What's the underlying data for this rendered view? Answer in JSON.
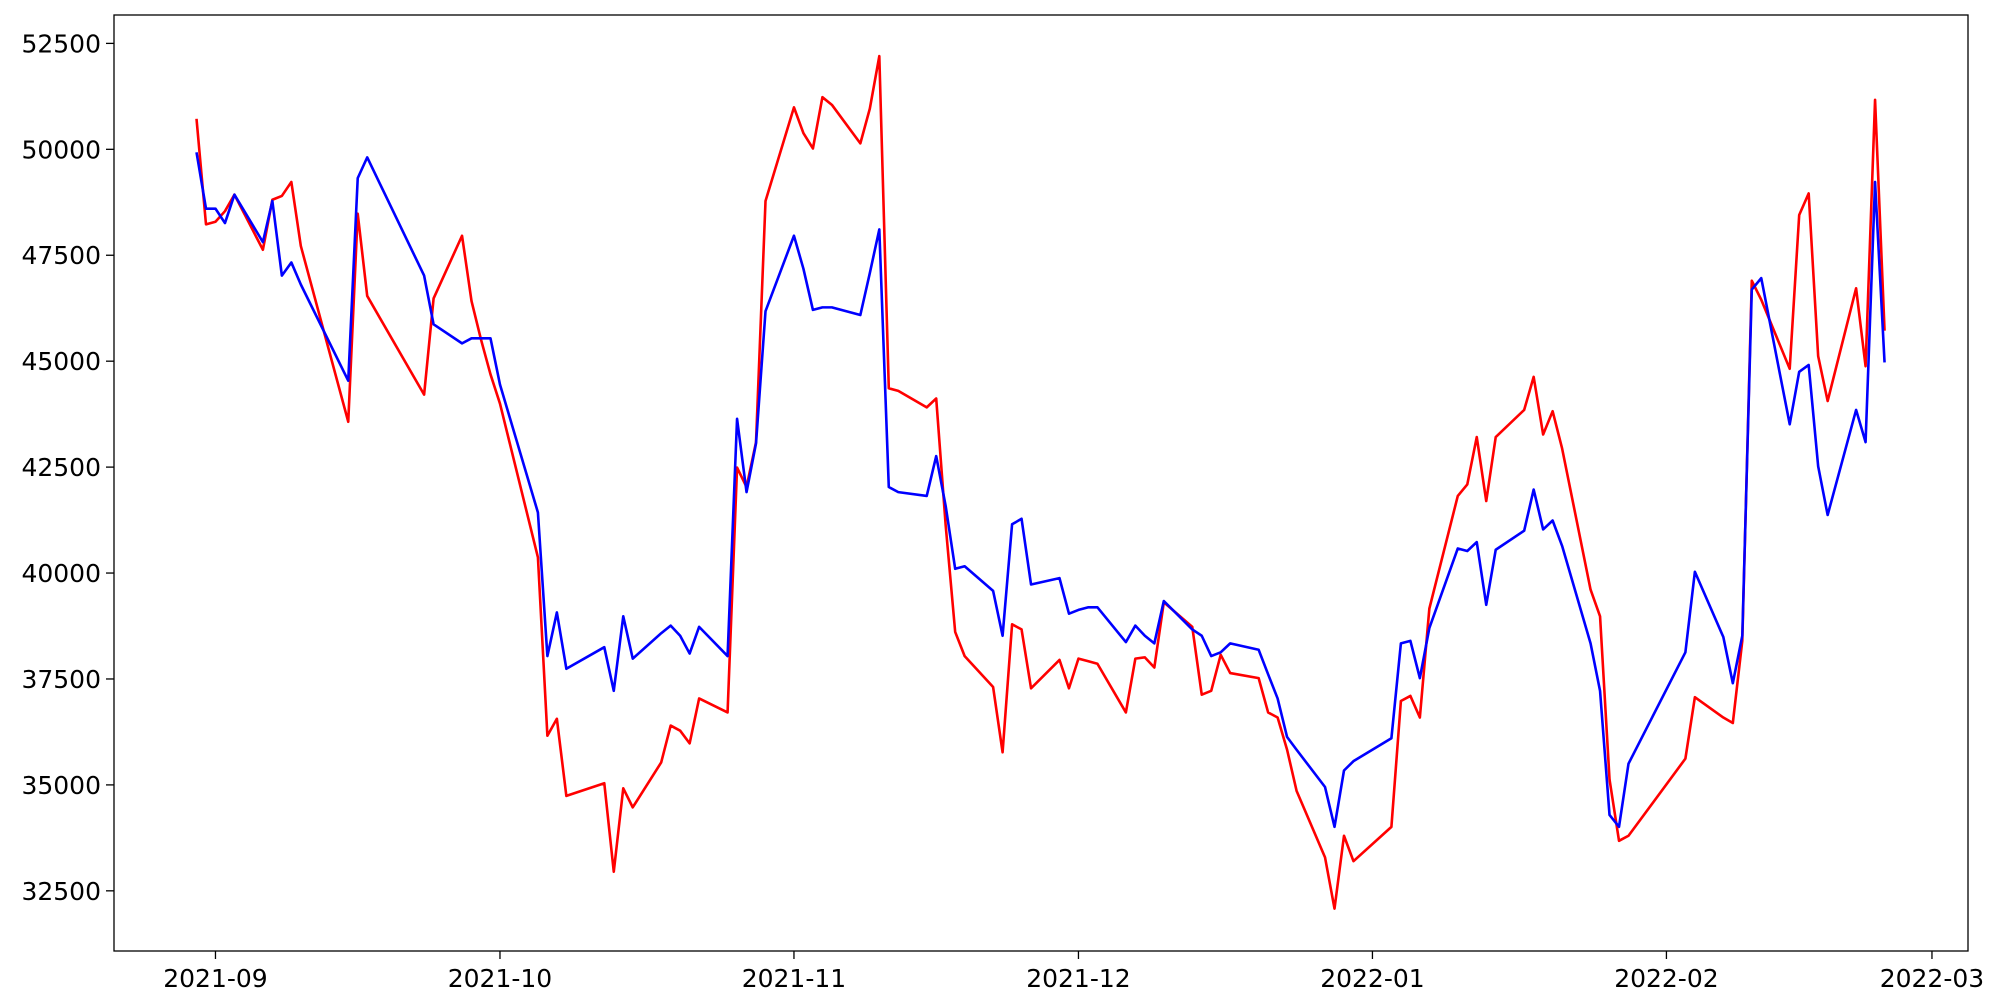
{
  "chart_data": {
    "type": "line",
    "x": [
      18869,
      18870,
      18871,
      18872,
      18873,
      18876,
      18877,
      18878,
      18879,
      18880,
      18885,
      18886,
      18887,
      18893,
      18894,
      18897,
      18898,
      18899,
      18900,
      18901,
      18905,
      18906,
      18907,
      18908,
      18912,
      18913,
      18914,
      18915,
      18918,
      18919,
      18920,
      18921,
      18922,
      18925,
      18926,
      18927,
      18928,
      18929,
      18932,
      18933,
      18934,
      18935,
      18936,
      18939,
      18940,
      18941,
      18942,
      18943,
      18946,
      18947,
      18948,
      18949,
      18950,
      18953,
      18954,
      18955,
      18956,
      18957,
      18960,
      18961,
      18962,
      18963,
      18964,
      18967,
      18968,
      18969,
      18970,
      18971,
      18974,
      18975,
      18976,
      18977,
      18978,
      18981,
      18982,
      18983,
      18984,
      18985,
      18988,
      18989,
      18990,
      18991,
      18995,
      18996,
      18997,
      18998,
      18999,
      19002,
      19003,
      19004,
      19005,
      19006,
      19009,
      19010,
      19011,
      19012,
      19013,
      19016,
      19017,
      19018,
      19019,
      19020,
      19026,
      19027,
      19030,
      19031,
      19032,
      19033,
      19034,
      19037,
      19038,
      19039,
      19040,
      19041,
      19044,
      19045,
      19046,
      19047
    ],
    "series": [
      {
        "color": "#ff0000",
        "values": [
          50720,
          48230,
          48290,
          48540,
          48930,
          47630,
          48810,
          48900,
          49230,
          47720,
          43570,
          48480,
          46540,
          44210,
          46480,
          47960,
          46420,
          45510,
          44690,
          44000,
          40370,
          36160,
          36560,
          34740,
          35040,
          32950,
          34920,
          34470,
          35530,
          36400,
          36280,
          35980,
          37040,
          36710,
          42490,
          42030,
          43090,
          48780,
          50990,
          50380,
          50020,
          51230,
          51050,
          50140,
          50960,
          52200,
          44360,
          44300,
          43910,
          44120,
          41120,
          38610,
          38040,
          37310,
          35770,
          38790,
          38670,
          37280,
          37950,
          37280,
          37980,
          37920,
          37860,
          36710,
          37980,
          38010,
          37770,
          39310,
          38730,
          37130,
          37220,
          38070,
          37640,
          37520,
          36710,
          36590,
          35830,
          34860,
          33290,
          32080,
          33800,
          33200,
          34010,
          36980,
          37100,
          36590,
          39160,
          41820,
          42090,
          43210,
          41700,
          43210,
          43850,
          44630,
          43270,
          43820,
          42940,
          39610,
          38980,
          35130,
          33680,
          33800,
          35620,
          37070,
          36590,
          36460,
          38400,
          46900,
          46450,
          44820,
          48450,
          48960,
          45120,
          44060,
          46720,
          44880,
          51170,
          45720
        ]
      },
      {
        "color": "#0000ff",
        "values": [
          49930,
          48600,
          48600,
          48260,
          48930,
          47810,
          48780,
          47020,
          47330,
          46810,
          44540,
          49320,
          49810,
          47020,
          45870,
          45420,
          45540,
          45540,
          45540,
          44450,
          41430,
          38040,
          39070,
          37740,
          38250,
          37220,
          38980,
          37980,
          38580,
          38760,
          38520,
          38100,
          38730,
          38040,
          43640,
          41910,
          43060,
          46180,
          47960,
          47180,
          46210,
          46270,
          46270,
          46090,
          47080,
          48110,
          42030,
          41910,
          41820,
          42760,
          41580,
          40100,
          40160,
          39580,
          38520,
          41150,
          41280,
          39730,
          39880,
          39040,
          39130,
          39190,
          39190,
          38370,
          38760,
          38520,
          38340,
          39340,
          38670,
          38520,
          38040,
          38130,
          38340,
          38190,
          37610,
          37040,
          36130,
          35830,
          34950,
          34010,
          35340,
          35560,
          36100,
          38340,
          38400,
          37520,
          38700,
          40580,
          40520,
          40730,
          39250,
          40550,
          41000,
          41970,
          41030,
          41240,
          40640,
          38340,
          37220,
          34290,
          34010,
          35500,
          38130,
          40030,
          38490,
          37400,
          38520,
          46690,
          46960,
          43510,
          44750,
          44910,
          42520,
          41370,
          43850,
          43090,
          49230,
          44970
        ]
      }
    ],
    "xlim": [
      18860.3,
      19055.8
    ],
    "ylim": [
      31080,
      53170
    ],
    "xticks": [
      {
        "value": 18871,
        "label": "2021-09"
      },
      {
        "value": 18901,
        "label": "2021-10"
      },
      {
        "value": 18932,
        "label": "2021-11"
      },
      {
        "value": 18962,
        "label": "2021-12"
      },
      {
        "value": 18993,
        "label": "2022-01"
      },
      {
        "value": 19024,
        "label": "2022-02"
      },
      {
        "value": 19052,
        "label": "2022-03"
      }
    ],
    "yticks": [
      32500,
      35000,
      37500,
      40000,
      42500,
      45000,
      47500,
      50000,
      52500
    ]
  }
}
